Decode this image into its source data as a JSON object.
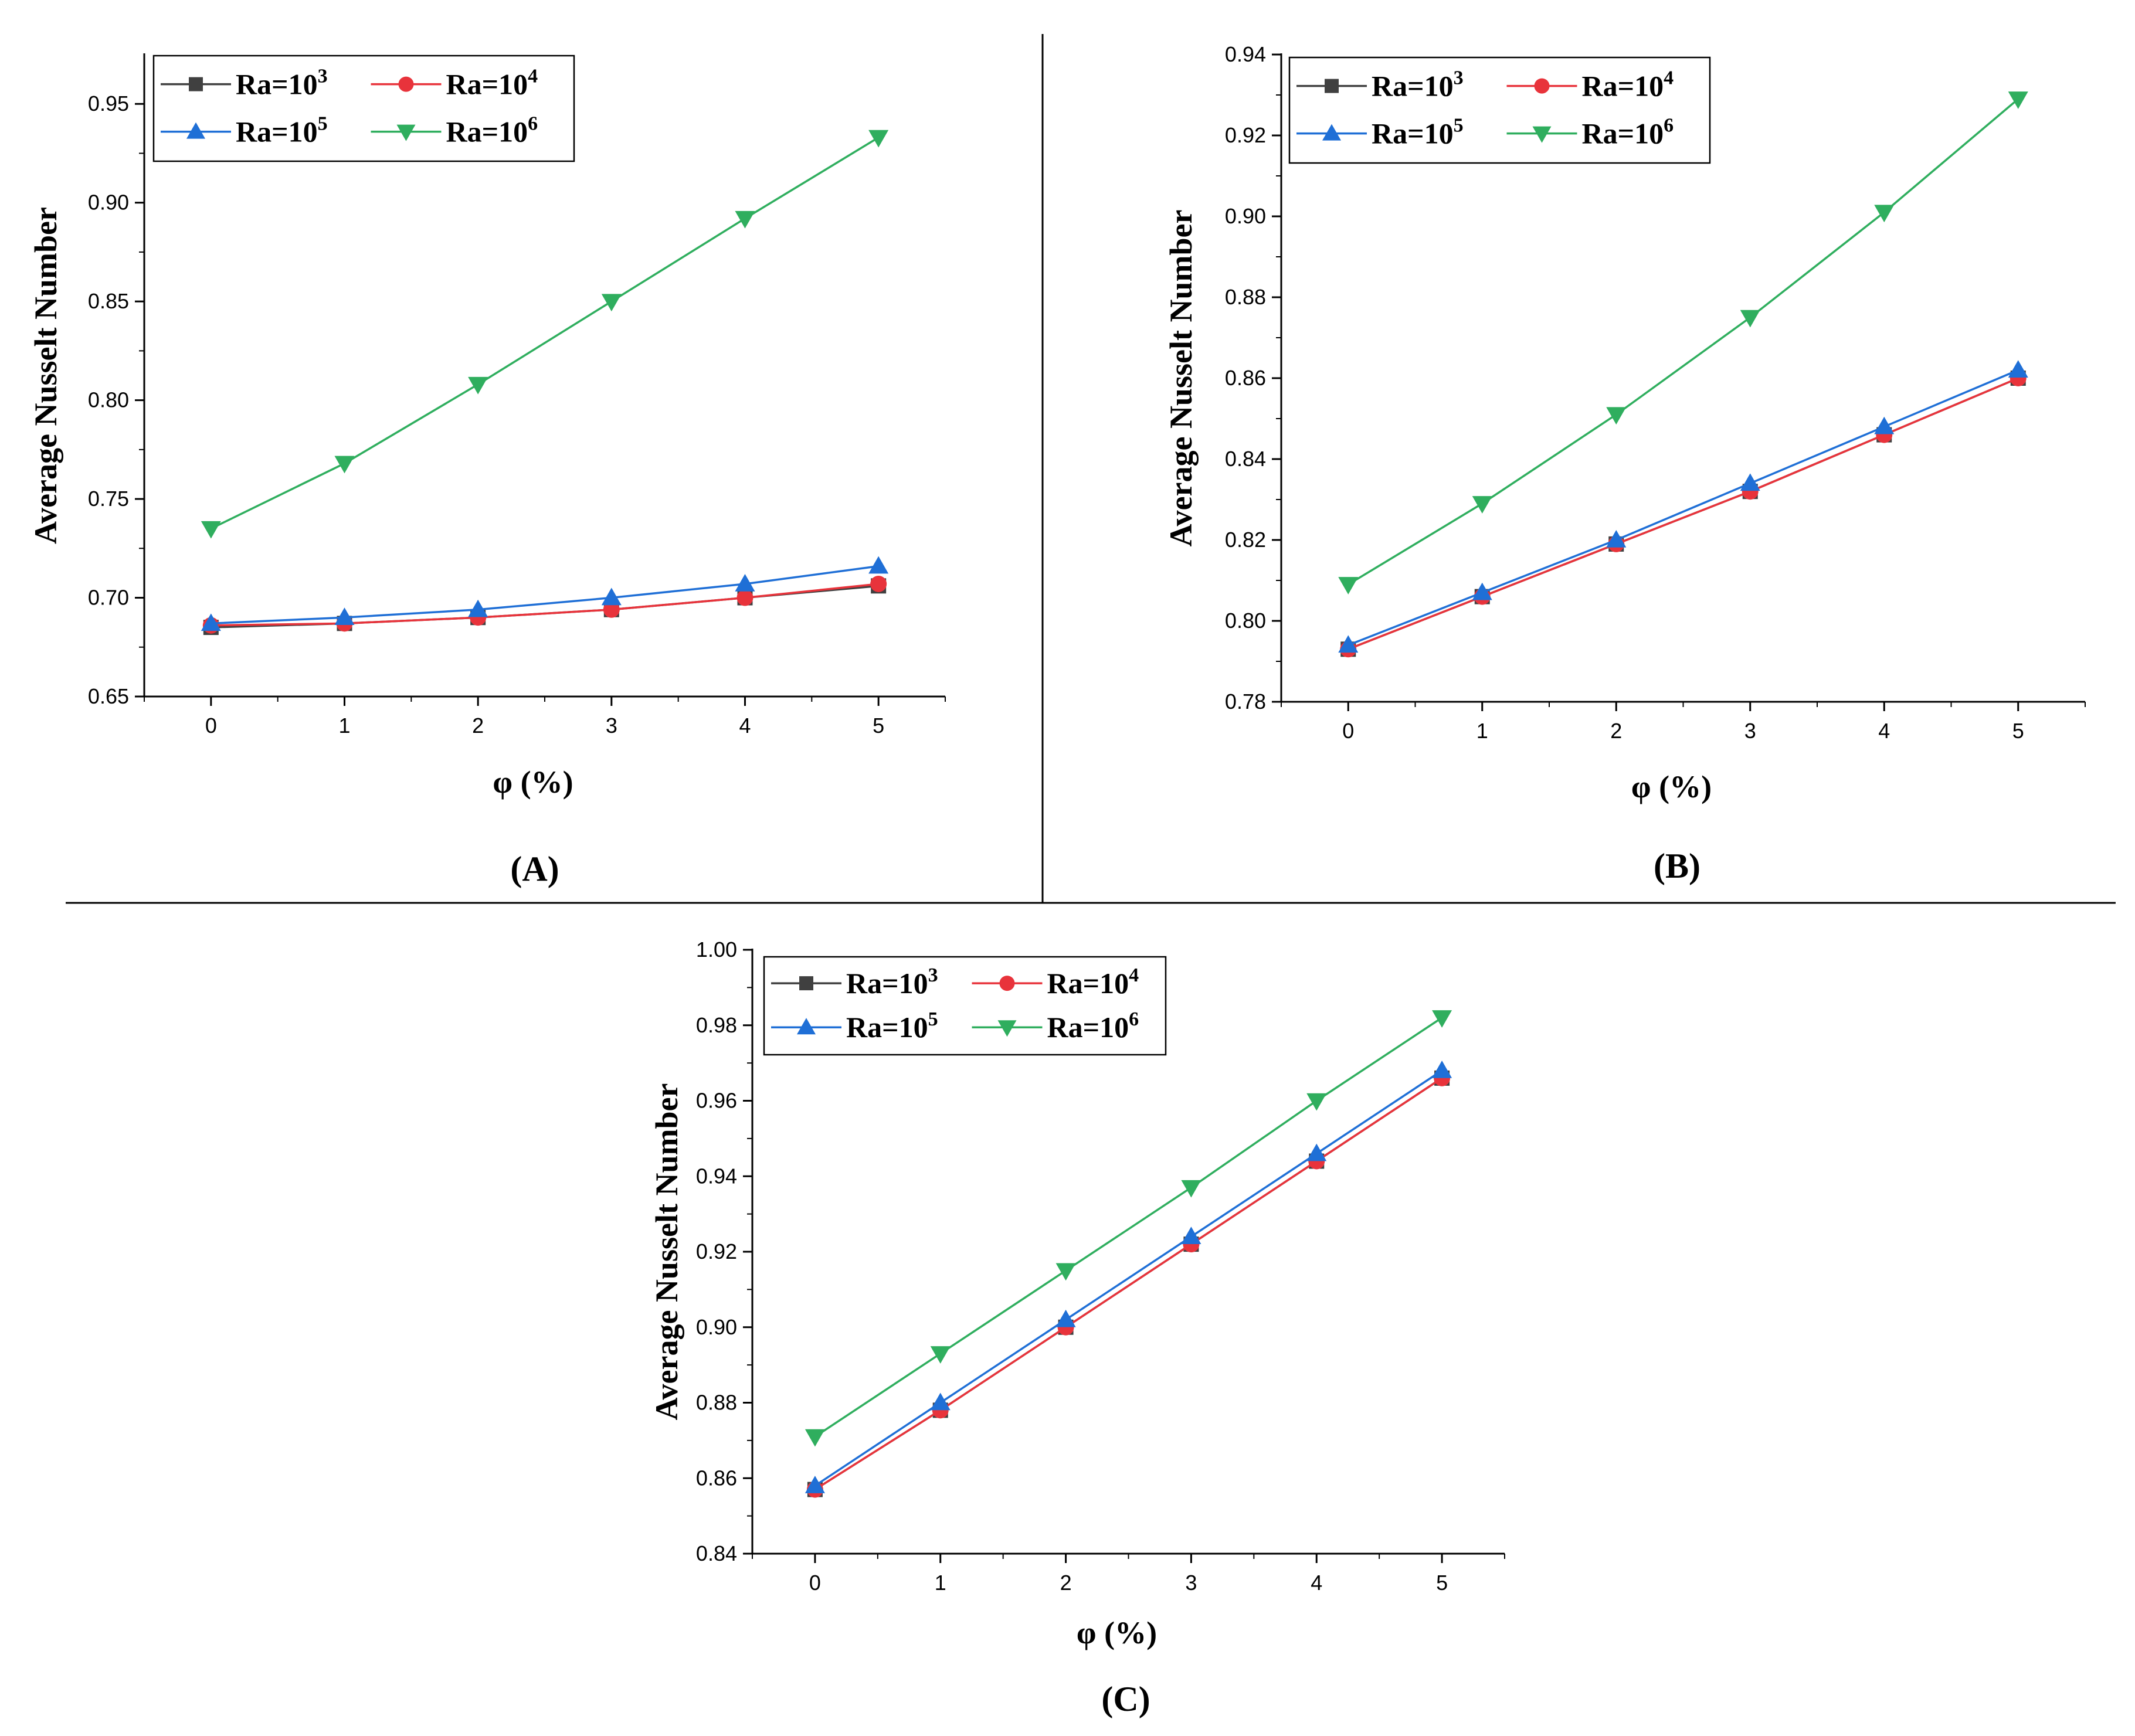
{
  "figure": {
    "panels": [
      "(A)",
      "(B)",
      "(C)"
    ]
  },
  "colors": {
    "Ra=10^3": "#404040",
    "Ra=10^4": "#e8333b",
    "Ra=10^5": "#1f6fd6",
    "Ra=10^6": "#2fae5e"
  },
  "chart_data": [
    {
      "panel": "(A)",
      "type": "line",
      "xlabel": "φ (%)",
      "ylabel": "Average Nusselt Number",
      "x": [
        0,
        1,
        2,
        3,
        4,
        5
      ],
      "xticks": [
        "0",
        "1",
        "2",
        "3",
        "4",
        "5"
      ],
      "xlim": [
        -0.5,
        5.5
      ],
      "ylim": [
        0.65,
        0.975
      ],
      "yticks": [
        "0.65",
        "0.70",
        "0.75",
        "0.80",
        "0.85",
        "0.90",
        "0.95"
      ],
      "legend": {
        "position": "top-left",
        "entries": [
          [
            "Ra=10",
            "3"
          ],
          [
            "Ra=10",
            "4"
          ],
          [
            "Ra=10",
            "5"
          ],
          [
            "Ra=10",
            "6"
          ]
        ]
      },
      "series": [
        {
          "name": "Ra=10^3",
          "marker": "square",
          "values": [
            0.685,
            0.687,
            0.69,
            0.694,
            0.7,
            0.706
          ]
        },
        {
          "name": "Ra=10^4",
          "marker": "circle",
          "values": [
            0.686,
            0.687,
            0.69,
            0.694,
            0.7,
            0.707
          ]
        },
        {
          "name": "Ra=10^5",
          "marker": "triangle-up",
          "values": [
            0.687,
            0.69,
            0.694,
            0.7,
            0.707,
            0.716
          ]
        },
        {
          "name": "Ra=10^6",
          "marker": "triangle-down",
          "values": [
            0.735,
            0.768,
            0.808,
            0.85,
            0.892,
            0.933
          ]
        }
      ]
    },
    {
      "panel": "(B)",
      "type": "line",
      "xlabel": "φ (%)",
      "ylabel": "Average Nusselt Number",
      "x": [
        0,
        1,
        2,
        3,
        4,
        5
      ],
      "xticks": [
        "0",
        "1",
        "2",
        "3",
        "4",
        "5"
      ],
      "xlim": [
        -0.5,
        5.5
      ],
      "ylim": [
        0.78,
        0.94
      ],
      "yticks": [
        "0.78",
        "0.80",
        "0.82",
        "0.84",
        "0.86",
        "0.88",
        "0.90",
        "0.92",
        "0.94"
      ],
      "legend": {
        "position": "top-left",
        "entries": [
          [
            "Ra=10",
            "3"
          ],
          [
            "Ra=10",
            "4"
          ],
          [
            "Ra=10",
            "5"
          ],
          [
            "Ra=10",
            "6"
          ]
        ]
      },
      "series": [
        {
          "name": "Ra=10^3",
          "marker": "square",
          "values": [
            0.793,
            0.806,
            0.819,
            0.832,
            0.846,
            0.86
          ]
        },
        {
          "name": "Ra=10^4",
          "marker": "circle",
          "values": [
            0.793,
            0.806,
            0.819,
            0.832,
            0.846,
            0.86
          ]
        },
        {
          "name": "Ra=10^5",
          "marker": "triangle-up",
          "values": [
            0.794,
            0.807,
            0.82,
            0.834,
            0.848,
            0.862
          ]
        },
        {
          "name": "Ra=10^6",
          "marker": "triangle-down",
          "values": [
            0.809,
            0.829,
            0.851,
            0.875,
            0.901,
            0.929
          ]
        }
      ]
    },
    {
      "panel": "(C)",
      "type": "line",
      "xlabel": "φ (%)",
      "ylabel": "Average Nusselt Number",
      "x": [
        0,
        1,
        2,
        3,
        4,
        5
      ],
      "xticks": [
        "0",
        "1",
        "2",
        "3",
        "4",
        "5"
      ],
      "xlim": [
        -0.5,
        5.5
      ],
      "ylim": [
        0.84,
        1.0
      ],
      "yticks": [
        "0.84",
        "0.86",
        "0.88",
        "0.90",
        "0.92",
        "0.94",
        "0.96",
        "0.98",
        "1.00"
      ],
      "legend": {
        "position": "top-left",
        "entries": [
          [
            "Ra=10",
            "3"
          ],
          [
            "Ra=10",
            "4"
          ],
          [
            "Ra=10",
            "5"
          ],
          [
            "Ra=10",
            "6"
          ]
        ]
      },
      "series": [
        {
          "name": "Ra=10^3",
          "marker": "square",
          "values": [
            0.857,
            0.878,
            0.9,
            0.922,
            0.944,
            0.966
          ]
        },
        {
          "name": "Ra=10^4",
          "marker": "circle",
          "values": [
            0.857,
            0.878,
            0.9,
            0.922,
            0.944,
            0.966
          ]
        },
        {
          "name": "Ra=10^5",
          "marker": "triangle-up",
          "values": [
            0.858,
            0.88,
            0.902,
            0.924,
            0.946,
            0.968
          ]
        },
        {
          "name": "Ra=10^6",
          "marker": "triangle-down",
          "values": [
            0.871,
            0.893,
            0.915,
            0.937,
            0.96,
            0.982
          ]
        }
      ]
    }
  ]
}
